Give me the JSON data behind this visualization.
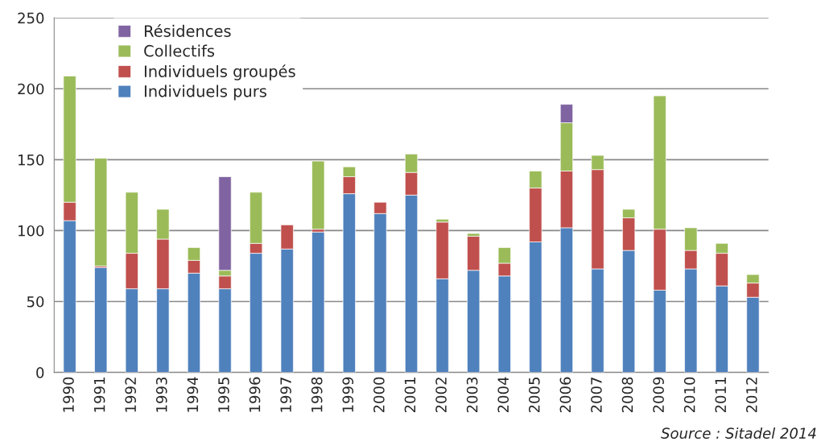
{
  "chart_data": {
    "type": "bar",
    "stacked": true,
    "categories": [
      "1990",
      "1991",
      "1992",
      "1993",
      "1994",
      "1995",
      "1996",
      "1997",
      "1998",
      "1999",
      "2000",
      "2001",
      "2002",
      "2003",
      "2004",
      "2005",
      "2006",
      "2007",
      "2008",
      "2009",
      "2010",
      "2011",
      "2012"
    ],
    "series": [
      {
        "name": "Individuels purs",
        "color": "#4f81bd",
        "values": [
          107,
          74,
          59,
          59,
          70,
          59,
          84,
          87,
          99,
          126,
          112,
          125,
          66,
          72,
          68,
          92,
          102,
          73,
          86,
          58,
          73,
          61,
          53
        ]
      },
      {
        "name": "Individuels groupés",
        "color": "#c0504d",
        "values": [
          13,
          1,
          25,
          35,
          9,
          9,
          7,
          17,
          2,
          12,
          8,
          16,
          40,
          24,
          9,
          38,
          40,
          70,
          23,
          43,
          13,
          23,
          10
        ]
      },
      {
        "name": "Collectifs",
        "color": "#9bbb59",
        "values": [
          89,
          76,
          43,
          21,
          9,
          4,
          36,
          null,
          48,
          7,
          null,
          13,
          2,
          2,
          11,
          12,
          34,
          10,
          6,
          94,
          16,
          7,
          6
        ]
      },
      {
        "name": "Résidences",
        "color": "#8064a2",
        "values": [
          null,
          null,
          null,
          null,
          null,
          66,
          null,
          null,
          null,
          null,
          null,
          null,
          null,
          null,
          null,
          null,
          13,
          null,
          null,
          null,
          null,
          null,
          null
        ]
      }
    ],
    "ylim": [
      0,
      250
    ],
    "yticks": [
      0,
      50,
      100,
      150,
      200,
      250
    ],
    "grid": "y",
    "legend": "top left",
    "annotations": [
      "Source : Sitadel 2014"
    ]
  }
}
